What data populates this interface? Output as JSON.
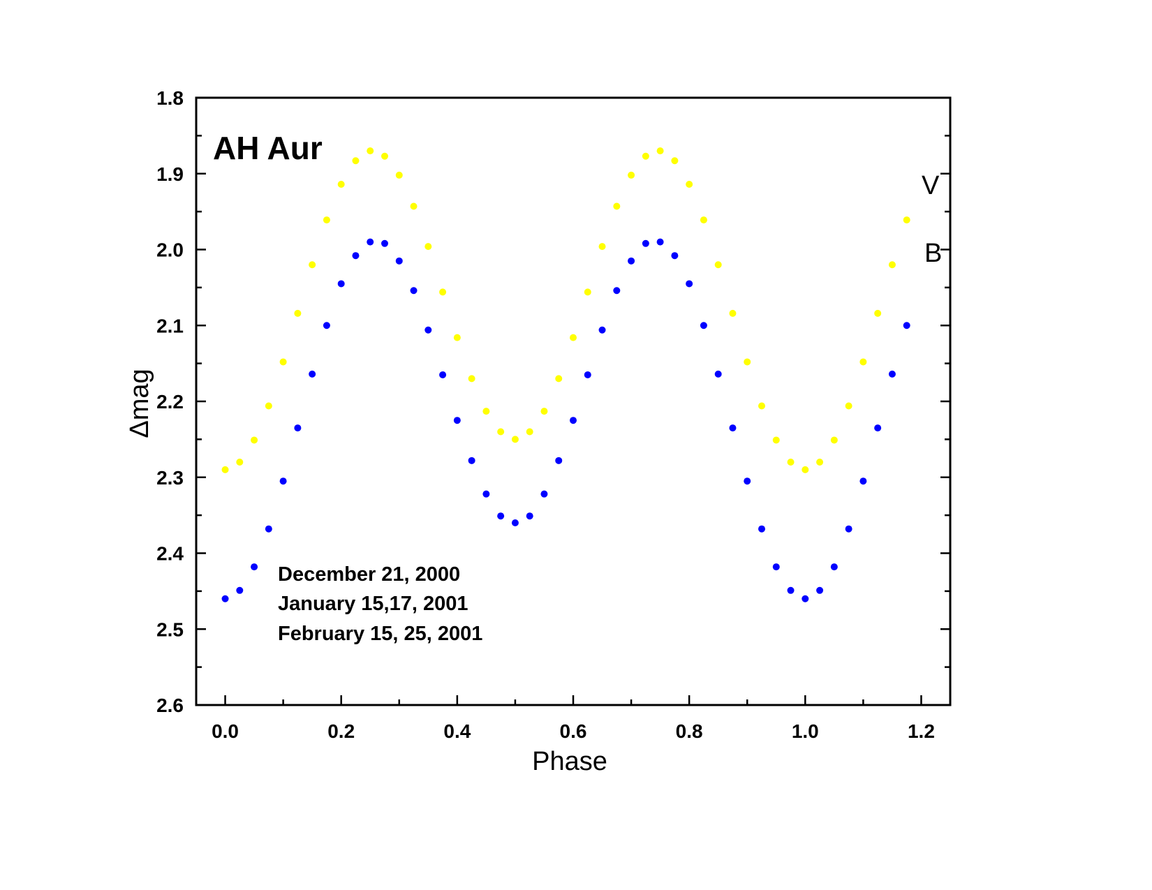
{
  "chart_data": {
    "type": "scatter",
    "title": "AH Aur",
    "xlabel": "Phase",
    "ylabel": "Δmag",
    "xlim": [
      -0.05,
      1.25
    ],
    "ylim": [
      1.8,
      2.6
    ],
    "y_inverted": true,
    "xticks": [
      "0.0",
      "0.2",
      "0.4",
      "0.6",
      "0.8",
      "1.0",
      "1.2"
    ],
    "yticks": [
      "1.8",
      "1.9",
      "2.0",
      "2.1",
      "2.2",
      "2.3",
      "2.4",
      "2.5",
      "2.6"
    ],
    "annotations": [
      "December 21, 2000",
      "January 15,17, 2001",
      "February 15, 25, 2001"
    ],
    "x": [
      0,
      0.025,
      0.05,
      0.075,
      0.1,
      0.125,
      0.15,
      0.175,
      0.2,
      0.225,
      0.25,
      0.275,
      0.3,
      0.325,
      0.35,
      0.375,
      0.4,
      0.425,
      0.45,
      0.475,
      0.5,
      0.525,
      0.55,
      0.575,
      0.6,
      0.625,
      0.65,
      0.675,
      0.7,
      0.725,
      0.75,
      0.775,
      0.8,
      0.825,
      0.85,
      0.875,
      0.9,
      0.925,
      0.95,
      0.975,
      1.0,
      1.025,
      1.05,
      1.075,
      1.1,
      1.125,
      1.15,
      1.175
    ],
    "series": [
      {
        "name": "V",
        "color": "#ffff00",
        "values": [
          2.29,
          2.28,
          2.251,
          2.206,
          2.148,
          2.084,
          2.02,
          1.961,
          1.914,
          1.883,
          1.87,
          1.877,
          1.902,
          1.943,
          1.996,
          2.056,
          2.116,
          2.17,
          2.213,
          2.24,
          2.25,
          2.24,
          2.213,
          2.17,
          2.116,
          2.056,
          1.996,
          1.943,
          1.902,
          1.877,
          1.87,
          1.883,
          1.914,
          1.961,
          2.02,
          2.084,
          2.148,
          2.206,
          2.251,
          2.28,
          2.29,
          2.28,
          2.251,
          2.206,
          2.148,
          2.084,
          2.02,
          1.961
        ]
      },
      {
        "name": "B",
        "color": "#0000ff",
        "values": [
          2.46,
          2.449,
          2.418,
          2.368,
          2.305,
          2.235,
          2.164,
          2.1,
          2.045,
          2.008,
          1.99,
          1.992,
          2.015,
          2.054,
          2.106,
          2.165,
          2.225,
          2.278,
          2.322,
          2.351,
          2.36,
          2.351,
          2.322,
          2.278,
          2.225,
          2.165,
          2.106,
          2.054,
          2.015,
          1.992,
          1.99,
          2.008,
          2.045,
          2.1,
          2.164,
          2.235,
          2.305,
          2.368,
          2.418,
          2.449,
          2.46,
          2.449,
          2.418,
          2.368,
          2.305,
          2.235,
          2.164,
          2.1
        ]
      }
    ]
  }
}
